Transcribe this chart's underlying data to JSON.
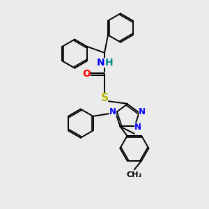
{
  "background_color": "#ebebeb",
  "atom_colors": {
    "N": "#0000ff",
    "O": "#ff0000",
    "S": "#b8b800",
    "H": "#008b8b",
    "C": "#000000"
  },
  "lw": 1.4,
  "r_benz": 0.72,
  "layout": {
    "xlim": [
      0,
      10
    ],
    "ylim": [
      0,
      10.5
    ]
  }
}
